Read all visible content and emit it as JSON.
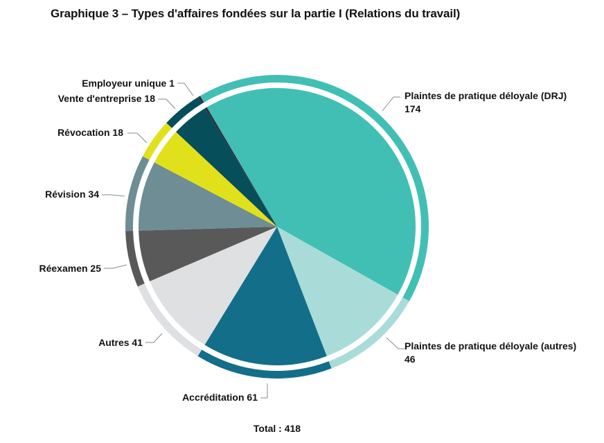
{
  "title": "Graphique 3 – Types d'affaires fondées sur la partie I (Relations du travail)",
  "total_label": "Total : 418",
  "chart_data": {
    "type": "pie",
    "title": "Graphique 3 – Types d'affaires fondées sur la partie I (Relations du travail)",
    "total": 418,
    "start_angle_deg": -30.5,
    "direction": "clockwise",
    "legend": "none (data labels with leader lines)",
    "slices": [
      {
        "label": "Plaintes de pratique déloyale (DRJ)",
        "value": 174,
        "color": "#41BFB5"
      },
      {
        "label": "Plaintes de pratique déloyale (autres)",
        "value": 46,
        "color": "#A9DCD8"
      },
      {
        "label": "Accréditation",
        "value": 61,
        "color": "#136E8A"
      },
      {
        "label": "Autres",
        "value": 41,
        "color": "#DFE0E2"
      },
      {
        "label": "Réexamen",
        "value": 25,
        "color": "#595959"
      },
      {
        "label": "Révision",
        "value": 34,
        "color": "#6E8D95"
      },
      {
        "label": "Révocation",
        "value": 18,
        "color": "#E1E11B"
      },
      {
        "label": "Vente d'entreprise",
        "value": 18,
        "color": "#054E5A"
      },
      {
        "label": "Employeur unique",
        "value": 1,
        "color": "#2B2D42"
      }
    ]
  },
  "labels": {
    "drj_name": "Plaintes de pratique déloyale (DRJ)",
    "drj_value": "174",
    "autres_pp_name": "Plaintes de pratique déloyale (autres)",
    "autres_pp_value": "46",
    "accreditation": "Accréditation 61",
    "autres": "Autres 41",
    "reexamen": "Réexamen 25",
    "revision": "Révision 34",
    "revocation": "Révocation 18",
    "vente": "Vente d'entreprise 18",
    "employeur": "Employeur unique 1"
  }
}
